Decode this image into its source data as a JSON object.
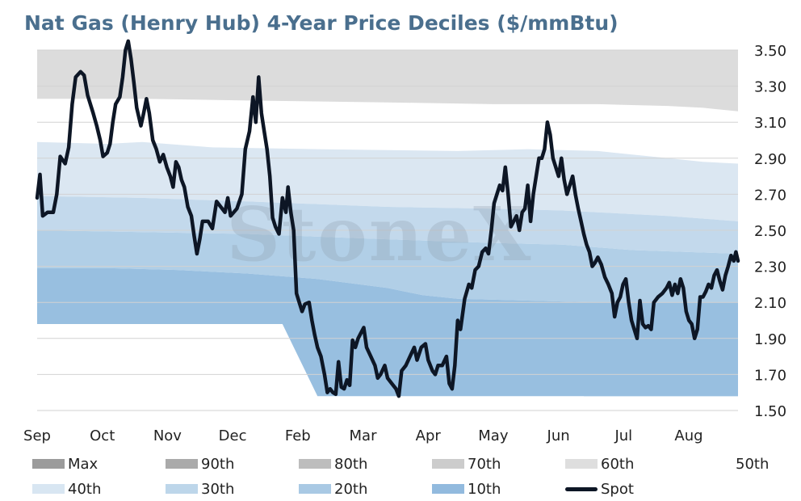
{
  "chart_data": {
    "type": "area",
    "title": "Nat Gas (Henry Hub) 4-Year Price Deciles ($/mmBtu)",
    "watermark": "StoneX",
    "y_axis": {
      "ylim": [
        1.5,
        3.5
      ],
      "ticks": [
        "3.50",
        "3.30",
        "3.10",
        "2.90",
        "2.70",
        "2.50",
        "2.30",
        "2.10",
        "1.90",
        "1.70",
        "1.50"
      ],
      "position": "right"
    },
    "x_axis": {
      "ticks": [
        "Sep",
        "Oct",
        "Nov",
        "Dec",
        "Feb",
        "Mar",
        "Apr",
        "May",
        "Jun",
        "Jul",
        "Aug"
      ]
    },
    "grid": true,
    "legend": {
      "position": "bottom",
      "items": [
        {
          "label": "Max",
          "color": "#9b9b9b",
          "kind": "area"
        },
        {
          "label": "90th",
          "color": "#aaaaaa",
          "kind": "area"
        },
        {
          "label": "80th",
          "color": "#bdbdbd",
          "kind": "area"
        },
        {
          "label": "70th",
          "color": "#cccccc",
          "kind": "area"
        },
        {
          "label": "60th",
          "color": "#dedede",
          "kind": "area"
        },
        {
          "label": "50th",
          "color": "#ffffff",
          "kind": "area"
        },
        {
          "label": "40th",
          "color": "#d8e6f2",
          "kind": "area"
        },
        {
          "label": "30th",
          "color": "#bdd6ea",
          "kind": "area"
        },
        {
          "label": "20th",
          "color": "#a9c9e4",
          "kind": "area"
        },
        {
          "label": "10th",
          "color": "#92bade",
          "kind": "area"
        },
        {
          "label": "Spot",
          "color": "#0d1625",
          "kind": "line"
        }
      ]
    },
    "bands": [
      {
        "name": "60th",
        "color": "#dcdcdc",
        "upper": [
          [
            0,
            3.5
          ],
          [
            1,
            3.5
          ]
        ],
        "lower": [
          [
            0,
            3.23
          ],
          [
            0.15,
            3.23
          ],
          [
            0.3,
            3.22
          ],
          [
            0.5,
            3.21
          ],
          [
            0.65,
            3.2
          ],
          [
            0.8,
            3.2
          ],
          [
            0.9,
            3.19
          ],
          [
            0.95,
            3.18
          ],
          [
            1,
            3.16
          ]
        ]
      },
      {
        "name": "40th",
        "color": "#dbe7f2",
        "upper": [
          [
            0,
            2.99
          ],
          [
            0.1,
            2.98
          ],
          [
            0.15,
            2.99
          ],
          [
            0.25,
            2.96
          ],
          [
            0.4,
            2.95
          ],
          [
            0.6,
            2.94
          ],
          [
            0.7,
            2.95
          ],
          [
            0.8,
            2.94
          ],
          [
            0.9,
            2.9
          ],
          [
            0.95,
            2.88
          ],
          [
            1,
            2.87
          ]
        ],
        "lower": [
          [
            0,
            2.69
          ],
          [
            0.15,
            2.68
          ],
          [
            0.3,
            2.66
          ],
          [
            0.5,
            2.63
          ],
          [
            0.65,
            2.62
          ],
          [
            0.75,
            2.61
          ],
          [
            0.8,
            2.6
          ],
          [
            0.9,
            2.58
          ],
          [
            1,
            2.55
          ]
        ]
      },
      {
        "name": "30th",
        "color": "#c3d9ec",
        "upper": [
          [
            0,
            2.69
          ],
          [
            0.15,
            2.68
          ],
          [
            0.3,
            2.66
          ],
          [
            0.5,
            2.63
          ],
          [
            0.65,
            2.62
          ],
          [
            0.75,
            2.61
          ],
          [
            0.8,
            2.6
          ],
          [
            0.9,
            2.58
          ],
          [
            1,
            2.55
          ]
        ],
        "lower": [
          [
            0,
            2.5
          ],
          [
            0.3,
            2.48
          ],
          [
            0.5,
            2.45
          ],
          [
            0.65,
            2.43
          ],
          [
            0.75,
            2.42
          ],
          [
            0.85,
            2.39
          ],
          [
            1,
            2.37
          ]
        ]
      },
      {
        "name": "20th",
        "color": "#b1cfe7",
        "upper": [
          [
            0,
            2.5
          ],
          [
            0.3,
            2.48
          ],
          [
            0.5,
            2.45
          ],
          [
            0.65,
            2.43
          ],
          [
            0.75,
            2.42
          ],
          [
            0.85,
            2.39
          ],
          [
            1,
            2.37
          ]
        ],
        "lower": [
          [
            0,
            2.29
          ],
          [
            0.1,
            2.29
          ],
          [
            0.2,
            2.28
          ],
          [
            0.3,
            2.26
          ],
          [
            0.4,
            2.23
          ],
          [
            0.5,
            2.18
          ],
          [
            0.55,
            2.14
          ],
          [
            0.6,
            2.12
          ],
          [
            0.7,
            2.11
          ],
          [
            0.8,
            2.1
          ],
          [
            1,
            2.1
          ]
        ]
      },
      {
        "name": "10th",
        "color": "#98bfe0",
        "upper": [
          [
            0,
            2.29
          ],
          [
            0.1,
            2.29
          ],
          [
            0.2,
            2.28
          ],
          [
            0.3,
            2.26
          ],
          [
            0.4,
            2.23
          ],
          [
            0.5,
            2.18
          ],
          [
            0.55,
            2.14
          ],
          [
            0.6,
            2.12
          ],
          [
            0.7,
            2.11
          ],
          [
            0.8,
            2.1
          ],
          [
            1,
            2.1
          ]
        ],
        "lower": [
          [
            0,
            1.98
          ],
          [
            0.35,
            1.98
          ],
          [
            0.4,
            1.58
          ],
          [
            1,
            1.58
          ]
        ]
      },
      {
        "name": "10th-lower",
        "color": "#98bfe0",
        "upper": [
          [
            0.78,
            2.1
          ],
          [
            0.86,
            2.08
          ],
          [
            1,
            2.05
          ]
        ],
        "lower": [
          [
            0.78,
            1.58
          ],
          [
            1,
            1.58
          ]
        ]
      }
    ],
    "spot": [
      [
        0.0,
        2.68
      ],
      [
        0.004,
        2.81
      ],
      [
        0.008,
        2.58
      ],
      [
        0.015,
        2.6
      ],
      [
        0.023,
        2.6
      ],
      [
        0.028,
        2.7
      ],
      [
        0.033,
        2.91
      ],
      [
        0.04,
        2.87
      ],
      [
        0.045,
        2.96
      ],
      [
        0.05,
        3.2
      ],
      [
        0.055,
        3.35
      ],
      [
        0.062,
        3.38
      ],
      [
        0.067,
        3.36
      ],
      [
        0.072,
        3.25
      ],
      [
        0.08,
        3.15
      ],
      [
        0.085,
        3.08
      ],
      [
        0.09,
        3.0
      ],
      [
        0.094,
        2.91
      ],
      [
        0.1,
        2.93
      ],
      [
        0.104,
        2.98
      ],
      [
        0.108,
        3.1
      ],
      [
        0.112,
        3.2
      ],
      [
        0.118,
        3.24
      ],
      [
        0.122,
        3.35
      ],
      [
        0.126,
        3.5
      ],
      [
        0.13,
        3.55
      ],
      [
        0.134,
        3.45
      ],
      [
        0.138,
        3.32
      ],
      [
        0.142,
        3.18
      ],
      [
        0.148,
        3.08
      ],
      [
        0.152,
        3.15
      ],
      [
        0.156,
        3.23
      ],
      [
        0.16,
        3.15
      ],
      [
        0.165,
        3.0
      ],
      [
        0.17,
        2.95
      ],
      [
        0.175,
        2.88
      ],
      [
        0.18,
        2.92
      ],
      [
        0.185,
        2.85
      ],
      [
        0.19,
        2.8
      ],
      [
        0.194,
        2.74
      ],
      [
        0.198,
        2.88
      ],
      [
        0.202,
        2.85
      ],
      [
        0.206,
        2.78
      ],
      [
        0.21,
        2.74
      ],
      [
        0.215,
        2.63
      ],
      [
        0.22,
        2.58
      ],
      [
        0.224,
        2.47
      ],
      [
        0.228,
        2.37
      ],
      [
        0.232,
        2.45
      ],
      [
        0.236,
        2.55
      ],
      [
        0.244,
        2.55
      ],
      [
        0.25,
        2.51
      ],
      [
        0.256,
        2.66
      ],
      [
        0.262,
        2.63
      ],
      [
        0.268,
        2.6
      ],
      [
        0.272,
        2.68
      ],
      [
        0.276,
        2.58
      ],
      [
        0.285,
        2.62
      ],
      [
        0.292,
        2.7
      ],
      [
        0.297,
        2.95
      ],
      [
        0.303,
        3.05
      ],
      [
        0.308,
        3.24
      ],
      [
        0.312,
        3.1
      ],
      [
        0.316,
        3.35
      ],
      [
        0.32,
        3.15
      ],
      [
        0.324,
        3.05
      ],
      [
        0.328,
        2.95
      ],
      [
        0.332,
        2.8
      ],
      [
        0.336,
        2.57
      ],
      [
        0.34,
        2.52
      ],
      [
        0.345,
        2.48
      ],
      [
        0.35,
        2.68
      ],
      [
        0.355,
        2.6
      ],
      [
        0.358,
        2.74
      ],
      [
        0.362,
        2.6
      ],
      [
        0.366,
        2.5
      ],
      [
        0.37,
        2.15
      ],
      [
        0.374,
        2.1
      ],
      [
        0.378,
        2.05
      ],
      [
        0.382,
        2.09
      ],
      [
        0.388,
        2.1
      ],
      [
        0.392,
        2.0
      ],
      [
        0.396,
        1.92
      ],
      [
        0.4,
        1.85
      ],
      [
        0.405,
        1.8
      ],
      [
        0.41,
        1.7
      ],
      [
        0.414,
        1.6
      ],
      [
        0.418,
        1.62
      ],
      [
        0.422,
        1.6
      ],
      [
        0.426,
        1.59
      ],
      [
        0.43,
        1.77
      ],
      [
        0.434,
        1.63
      ],
      [
        0.438,
        1.62
      ],
      [
        0.442,
        1.67
      ],
      [
        0.446,
        1.64
      ],
      [
        0.45,
        1.89
      ],
      [
        0.454,
        1.85
      ],
      [
        0.458,
        1.9
      ],
      [
        0.462,
        1.93
      ],
      [
        0.466,
        1.96
      ],
      [
        0.47,
        1.85
      ],
      [
        0.476,
        1.8
      ],
      [
        0.482,
        1.75
      ],
      [
        0.486,
        1.68
      ],
      [
        0.49,
        1.7
      ],
      [
        0.496,
        1.75
      ],
      [
        0.5,
        1.68
      ],
      [
        0.506,
        1.65
      ],
      [
        0.512,
        1.62
      ],
      [
        0.516,
        1.58
      ],
      [
        0.52,
        1.72
      ],
      [
        0.526,
        1.75
      ],
      [
        0.532,
        1.8
      ],
      [
        0.538,
        1.85
      ],
      [
        0.542,
        1.78
      ],
      [
        0.548,
        1.85
      ],
      [
        0.554,
        1.87
      ],
      [
        0.558,
        1.78
      ],
      [
        0.564,
        1.72
      ],
      [
        0.568,
        1.7
      ],
      [
        0.572,
        1.75
      ],
      [
        0.578,
        1.75
      ],
      [
        0.584,
        1.8
      ],
      [
        0.588,
        1.65
      ],
      [
        0.592,
        1.62
      ],
      [
        0.596,
        1.75
      ],
      [
        0.6,
        2.0
      ],
      [
        0.604,
        1.95
      ],
      [
        0.61,
        2.12
      ],
      [
        0.616,
        2.2
      ],
      [
        0.62,
        2.18
      ],
      [
        0.625,
        2.28
      ],
      [
        0.63,
        2.3
      ],
      [
        0.635,
        2.38
      ],
      [
        0.64,
        2.4
      ],
      [
        0.644,
        2.37
      ],
      [
        0.648,
        2.5
      ],
      [
        0.652,
        2.65
      ],
      [
        0.656,
        2.7
      ],
      [
        0.66,
        2.75
      ],
      [
        0.664,
        2.72
      ],
      [
        0.668,
        2.85
      ],
      [
        0.672,
        2.7
      ],
      [
        0.676,
        2.52
      ],
      [
        0.68,
        2.55
      ],
      [
        0.684,
        2.58
      ],
      [
        0.688,
        2.5
      ],
      [
        0.692,
        2.6
      ],
      [
        0.696,
        2.62
      ],
      [
        0.7,
        2.75
      ],
      [
        0.704,
        2.55
      ],
      [
        0.708,
        2.7
      ],
      [
        0.712,
        2.8
      ],
      [
        0.716,
        2.9
      ],
      [
        0.72,
        2.9
      ],
      [
        0.724,
        2.95
      ],
      [
        0.728,
        3.1
      ],
      [
        0.732,
        3.03
      ],
      [
        0.736,
        2.9
      ],
      [
        0.74,
        2.85
      ],
      [
        0.744,
        2.8
      ],
      [
        0.748,
        2.9
      ],
      [
        0.752,
        2.78
      ],
      [
        0.756,
        2.7
      ],
      [
        0.76,
        2.75
      ],
      [
        0.764,
        2.8
      ],
      [
        0.768,
        2.7
      ],
      [
        0.772,
        2.62
      ],
      [
        0.776,
        2.55
      ],
      [
        0.78,
        2.48
      ],
      [
        0.784,
        2.42
      ],
      [
        0.788,
        2.38
      ],
      [
        0.792,
        2.3
      ],
      [
        0.796,
        2.32
      ],
      [
        0.8,
        2.35
      ],
      [
        0.805,
        2.31
      ],
      [
        0.81,
        2.24
      ],
      [
        0.815,
        2.2
      ],
      [
        0.82,
        2.15
      ],
      [
        0.824,
        2.02
      ],
      [
        0.828,
        2.1
      ],
      [
        0.832,
        2.13
      ],
      [
        0.836,
        2.2
      ],
      [
        0.84,
        2.23
      ],
      [
        0.844,
        2.1
      ],
      [
        0.848,
        2.0
      ],
      [
        0.852,
        1.95
      ],
      [
        0.856,
        1.9
      ],
      [
        0.86,
        2.11
      ],
      [
        0.864,
        1.98
      ],
      [
        0.868,
        1.96
      ],
      [
        0.872,
        1.97
      ],
      [
        0.876,
        1.95
      ],
      [
        0.88,
        2.1
      ],
      [
        0.886,
        2.13
      ],
      [
        0.892,
        2.15
      ],
      [
        0.898,
        2.18
      ],
      [
        0.902,
        2.21
      ],
      [
        0.906,
        2.14
      ],
      [
        0.91,
        2.2
      ],
      [
        0.914,
        2.15
      ],
      [
        0.918,
        2.23
      ],
      [
        0.922,
        2.18
      ],
      [
        0.926,
        2.05
      ],
      [
        0.93,
        2.0
      ],
      [
        0.934,
        1.98
      ],
      [
        0.938,
        1.9
      ],
      [
        0.942,
        1.95
      ],
      [
        0.946,
        2.13
      ],
      [
        0.95,
        2.13
      ],
      [
        0.954,
        2.16
      ],
      [
        0.958,
        2.2
      ],
      [
        0.962,
        2.18
      ],
      [
        0.966,
        2.25
      ],
      [
        0.97,
        2.28
      ],
      [
        0.974,
        2.22
      ],
      [
        0.978,
        2.17
      ],
      [
        0.982,
        2.25
      ],
      [
        0.986,
        2.3
      ],
      [
        0.99,
        2.36
      ],
      [
        0.994,
        2.33
      ],
      [
        0.997,
        2.38
      ],
      [
        1.0,
        2.33
      ]
    ]
  }
}
